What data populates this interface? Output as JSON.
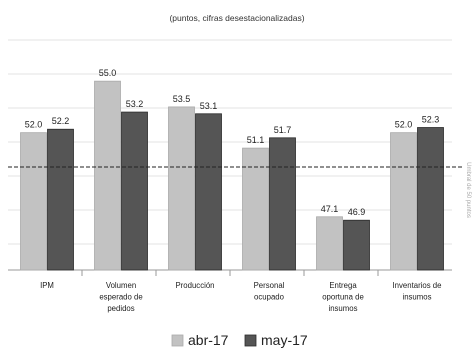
{
  "chart_data": {
    "type": "bar",
    "title": "",
    "subtitle": "(puntos, cifras desestacionalizadas)",
    "categories": [
      [
        "IPM"
      ],
      [
        "Volumen",
        "esperado de",
        "pedidos"
      ],
      [
        "Producción"
      ],
      [
        "Personal",
        "ocupado"
      ],
      [
        "Entrega",
        "oportuna de",
        "insumos"
      ],
      [
        "Inventarios de",
        "insumos"
      ]
    ],
    "series": [
      {
        "name": "abr-17",
        "values": [
          52.0,
          55.0,
          53.5,
          51.1,
          47.1,
          52.0
        ],
        "labels": [
          "52.0",
          "55.0",
          "53.5",
          "51.1",
          "47.1",
          "52.0"
        ],
        "color": "#c2c2c2"
      },
      {
        "name": "may-17",
        "values": [
          52.2,
          53.2,
          53.1,
          51.7,
          46.9,
          52.3
        ],
        "labels": [
          "52.2",
          "53.2",
          "53.1",
          "51.7",
          "46.9",
          "52.3"
        ],
        "color": "#555555"
      }
    ],
    "reference_line": 50,
    "ylim": [
      44,
      56
    ],
    "xlabel": "",
    "ylabel": "",
    "grid": true,
    "legend_position": "bottom",
    "side_note": "Umbral de 50 puntos"
  }
}
